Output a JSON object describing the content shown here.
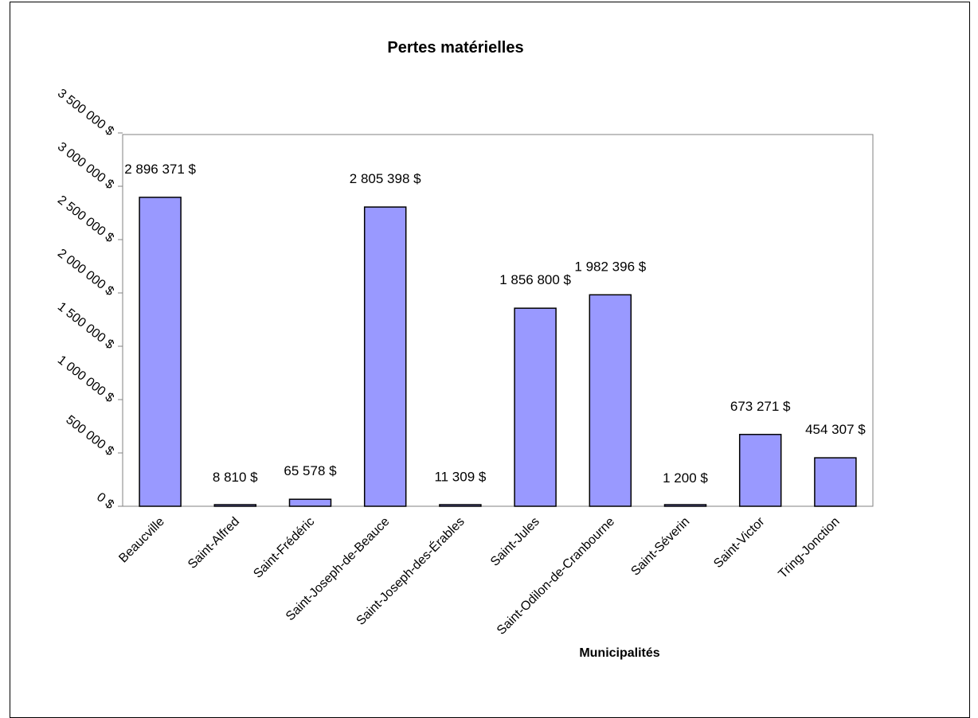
{
  "chart_data": {
    "type": "bar",
    "title": "Pertes matérielles",
    "xlabel": "Municipalités",
    "ylabel": "",
    "categories": [
      "Beaucville",
      "Saint-Alfred",
      "Saint-Frédéric",
      "Saint-Joseph-de-Beauce",
      "Saint-Joseph-des-Érables",
      "Saint-Jules",
      "Saint-Odilon-de-Cranbourne",
      "Saint-Séverin",
      "Saint-Victor",
      "Tring-Jonction"
    ],
    "values": [
      2896371,
      8810,
      65578,
      2805398,
      11309,
      1856800,
      1982396,
      1200,
      673271,
      454307
    ],
    "data_labels": [
      "2 896 371 $",
      "8 810 $",
      "65 578 $",
      "2 805 398 $",
      "11 309 $",
      "1 856 800 $",
      "1 982 396 $",
      "1 200 $",
      "673 271 $",
      "454 307 $"
    ],
    "y_ticks": [
      "0 $",
      "500 000 $",
      "1 000 000 $",
      "1 500 000 $",
      "2 000 000 $",
      "2 500 000 $",
      "3 000 000 $",
      "3 500 000 $"
    ],
    "ylim": [
      0,
      3500000
    ],
    "grid": false,
    "legend": "none",
    "colors": {
      "bar_fill": "#9999ff",
      "bar_stroke": "#000000",
      "plot_border": "#808080"
    }
  }
}
